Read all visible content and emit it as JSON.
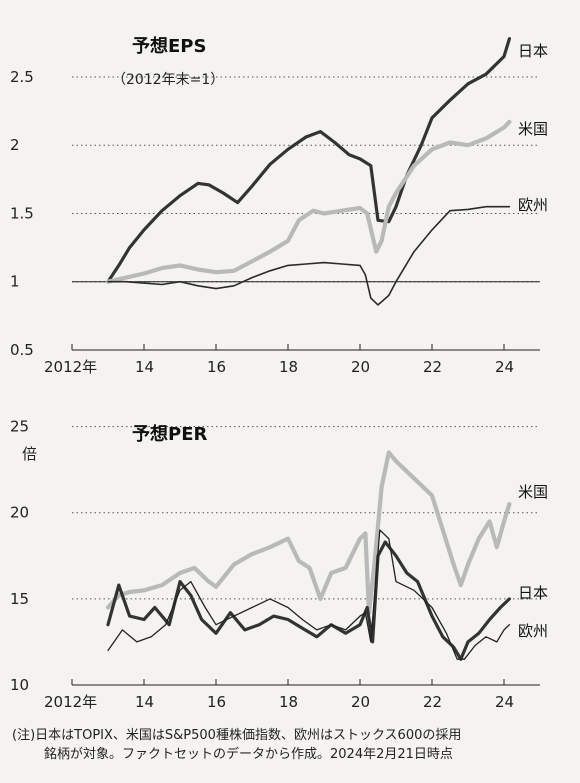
{
  "chart_data": [
    {
      "type": "line",
      "title": "予想EPS",
      "subtitle": "（2012年末=1）",
      "ylim": [
        0.5,
        2.8
      ],
      "xlim": [
        2012,
        2025
      ],
      "y_ticks": [
        "0.5",
        "1",
        "1.5",
        "2",
        "2.5"
      ],
      "y_tick_values": [
        0.5,
        1,
        1.5,
        2,
        2.5
      ],
      "x_ticks": [
        "2012年",
        "14",
        "16",
        "18",
        "20",
        "22",
        "24"
      ],
      "x_tick_values": [
        2012,
        2014,
        2016,
        2018,
        2020,
        2022,
        2024
      ],
      "grid": "dotted horizontal",
      "colors": {
        "日本": "#333333",
        "米国": "#b9b9b9",
        "欧州": "#2a2a2a"
      },
      "series": [
        {
          "name": "日本",
          "x": [
            2013.0,
            2013.3,
            2013.6,
            2014.0,
            2014.5,
            2015.0,
            2015.5,
            2015.8,
            2016.2,
            2016.6,
            2017.0,
            2017.5,
            2018.0,
            2018.5,
            2018.9,
            2019.3,
            2019.7,
            2020.0,
            2020.3,
            2020.5,
            2020.8,
            2021.0,
            2021.3,
            2021.7,
            2022.0,
            2022.5,
            2023.0,
            2023.5,
            2024.0,
            2024.15
          ],
          "y": [
            1.0,
            1.12,
            1.25,
            1.38,
            1.52,
            1.63,
            1.72,
            1.71,
            1.65,
            1.58,
            1.7,
            1.86,
            1.97,
            2.06,
            2.1,
            2.02,
            1.93,
            1.9,
            1.85,
            1.45,
            1.44,
            1.55,
            1.78,
            2.0,
            2.2,
            2.33,
            2.45,
            2.52,
            2.65,
            2.78
          ]
        },
        {
          "name": "米国",
          "x": [
            2013.0,
            2013.5,
            2014.0,
            2014.5,
            2015.0,
            2015.5,
            2016.0,
            2016.5,
            2017.0,
            2017.5,
            2018.0,
            2018.3,
            2018.7,
            2019.0,
            2019.5,
            2020.0,
            2020.2,
            2020.45,
            2020.6,
            2020.8,
            2021.0,
            2021.5,
            2022.0,
            2022.5,
            2023.0,
            2023.5,
            2024.0,
            2024.15
          ],
          "y": [
            1.0,
            1.03,
            1.06,
            1.1,
            1.12,
            1.09,
            1.07,
            1.08,
            1.15,
            1.22,
            1.3,
            1.45,
            1.52,
            1.5,
            1.52,
            1.54,
            1.5,
            1.22,
            1.3,
            1.55,
            1.65,
            1.85,
            1.97,
            2.02,
            2.0,
            2.05,
            2.13,
            2.17
          ]
        },
        {
          "name": "欧州",
          "x": [
            2013.0,
            2013.5,
            2014.0,
            2014.5,
            2015.0,
            2015.5,
            2016.0,
            2016.5,
            2017.0,
            2017.5,
            2018.0,
            2018.5,
            2019.0,
            2019.5,
            2020.0,
            2020.15,
            2020.3,
            2020.5,
            2020.8,
            2021.0,
            2021.5,
            2022.0,
            2022.5,
            2023.0,
            2023.5,
            2024.0,
            2024.15
          ],
          "y": [
            1.0,
            1.0,
            0.99,
            0.98,
            1.0,
            0.97,
            0.95,
            0.97,
            1.03,
            1.08,
            1.12,
            1.13,
            1.14,
            1.13,
            1.12,
            1.05,
            0.88,
            0.83,
            0.9,
            1.0,
            1.22,
            1.38,
            1.52,
            1.53,
            1.55,
            1.55,
            1.55
          ]
        }
      ],
      "reference_line": 1
    },
    {
      "type": "line",
      "title": "予想PER",
      "y_unit": "倍",
      "ylim": [
        10,
        25.5
      ],
      "xlim": [
        2012,
        2025
      ],
      "y_ticks": [
        "10",
        "15",
        "20",
        "25"
      ],
      "y_tick_values": [
        10,
        15,
        20,
        25
      ],
      "x_ticks": [
        "2012年",
        "14",
        "16",
        "18",
        "20",
        "22",
        "24"
      ],
      "x_tick_values": [
        2012,
        2014,
        2016,
        2018,
        2020,
        2022,
        2024
      ],
      "grid": "dotted horizontal",
      "colors": {
        "米国": "#b9b9b9",
        "日本": "#333333",
        "欧州": "#222222"
      },
      "series": [
        {
          "name": "米国",
          "x": [
            2013.0,
            2013.3,
            2013.6,
            2014.0,
            2014.5,
            2015.0,
            2015.4,
            2015.8,
            2016.0,
            2016.5,
            2017.0,
            2017.5,
            2018.0,
            2018.3,
            2018.6,
            2018.9,
            2019.2,
            2019.6,
            2020.0,
            2020.15,
            2020.25,
            2020.4,
            2020.6,
            2020.8,
            2021.0,
            2021.5,
            2022.0,
            2022.3,
            2022.6,
            2022.8,
            2023.0,
            2023.3,
            2023.6,
            2023.8,
            2024.0,
            2024.15
          ],
          "y": [
            14.5,
            15.2,
            15.4,
            15.5,
            15.8,
            16.5,
            16.8,
            16.0,
            15.7,
            17.0,
            17.6,
            18.0,
            18.5,
            17.2,
            16.8,
            15.0,
            16.5,
            16.8,
            18.5,
            18.8,
            14.2,
            17.0,
            21.5,
            23.5,
            23.0,
            22.0,
            21.0,
            19.0,
            17.0,
            15.8,
            17.0,
            18.5,
            19.5,
            18.0,
            19.5,
            20.5
          ]
        },
        {
          "name": "日本",
          "x": [
            2013.0,
            2013.3,
            2013.6,
            2014.0,
            2014.3,
            2014.7,
            2015.0,
            2015.3,
            2015.6,
            2016.0,
            2016.4,
            2016.8,
            2017.2,
            2017.6,
            2018.0,
            2018.4,
            2018.8,
            2019.2,
            2019.6,
            2020.0,
            2020.2,
            2020.35,
            2020.5,
            2020.7,
            2021.0,
            2021.3,
            2021.6,
            2022.0,
            2022.3,
            2022.6,
            2022.8,
            2023.0,
            2023.3,
            2023.6,
            2023.9,
            2024.15
          ],
          "y": [
            13.5,
            15.8,
            14.0,
            13.8,
            14.5,
            13.5,
            16.0,
            15.2,
            13.8,
            13.0,
            14.2,
            13.2,
            13.5,
            14.0,
            13.8,
            13.3,
            12.8,
            13.5,
            13.0,
            13.5,
            14.5,
            12.5,
            17.5,
            18.3,
            17.5,
            16.5,
            16.0,
            14.0,
            12.8,
            12.2,
            11.5,
            12.5,
            13.0,
            13.8,
            14.5,
            15.0
          ]
        },
        {
          "name": "欧州",
          "x": [
            2013.0,
            2013.4,
            2013.8,
            2014.2,
            2014.6,
            2015.0,
            2015.3,
            2015.7,
            2016.0,
            2016.5,
            2017.0,
            2017.5,
            2018.0,
            2018.4,
            2018.8,
            2019.2,
            2019.6,
            2020.0,
            2020.15,
            2020.3,
            2020.55,
            2020.8,
            2021.0,
            2021.5,
            2022.0,
            2022.4,
            2022.7,
            2022.9,
            2023.2,
            2023.5,
            2023.8,
            2024.0,
            2024.15
          ],
          "y": [
            12.0,
            13.2,
            12.5,
            12.8,
            13.5,
            15.5,
            16.0,
            14.5,
            13.5,
            14.0,
            14.5,
            15.0,
            14.5,
            13.8,
            13.2,
            13.5,
            13.2,
            14.0,
            14.2,
            12.5,
            19.0,
            18.5,
            16.0,
            15.5,
            14.5,
            13.0,
            11.5,
            11.5,
            12.3,
            12.8,
            12.5,
            13.2,
            13.5
          ]
        }
      ]
    }
  ],
  "labels": {
    "eps_japan": "日本",
    "eps_us": "米国",
    "eps_europe": "欧州",
    "per_us": "米国",
    "per_japan": "日本",
    "per_europe": "欧州"
  },
  "footnote": {
    "line1": "(注)日本はTOPIX、米国はS&P500種株価指数、欧州はストックス600の採用",
    "line2": "銘柄が対象。ファクトセットのデータから作成。2024年2月21日時点"
  }
}
